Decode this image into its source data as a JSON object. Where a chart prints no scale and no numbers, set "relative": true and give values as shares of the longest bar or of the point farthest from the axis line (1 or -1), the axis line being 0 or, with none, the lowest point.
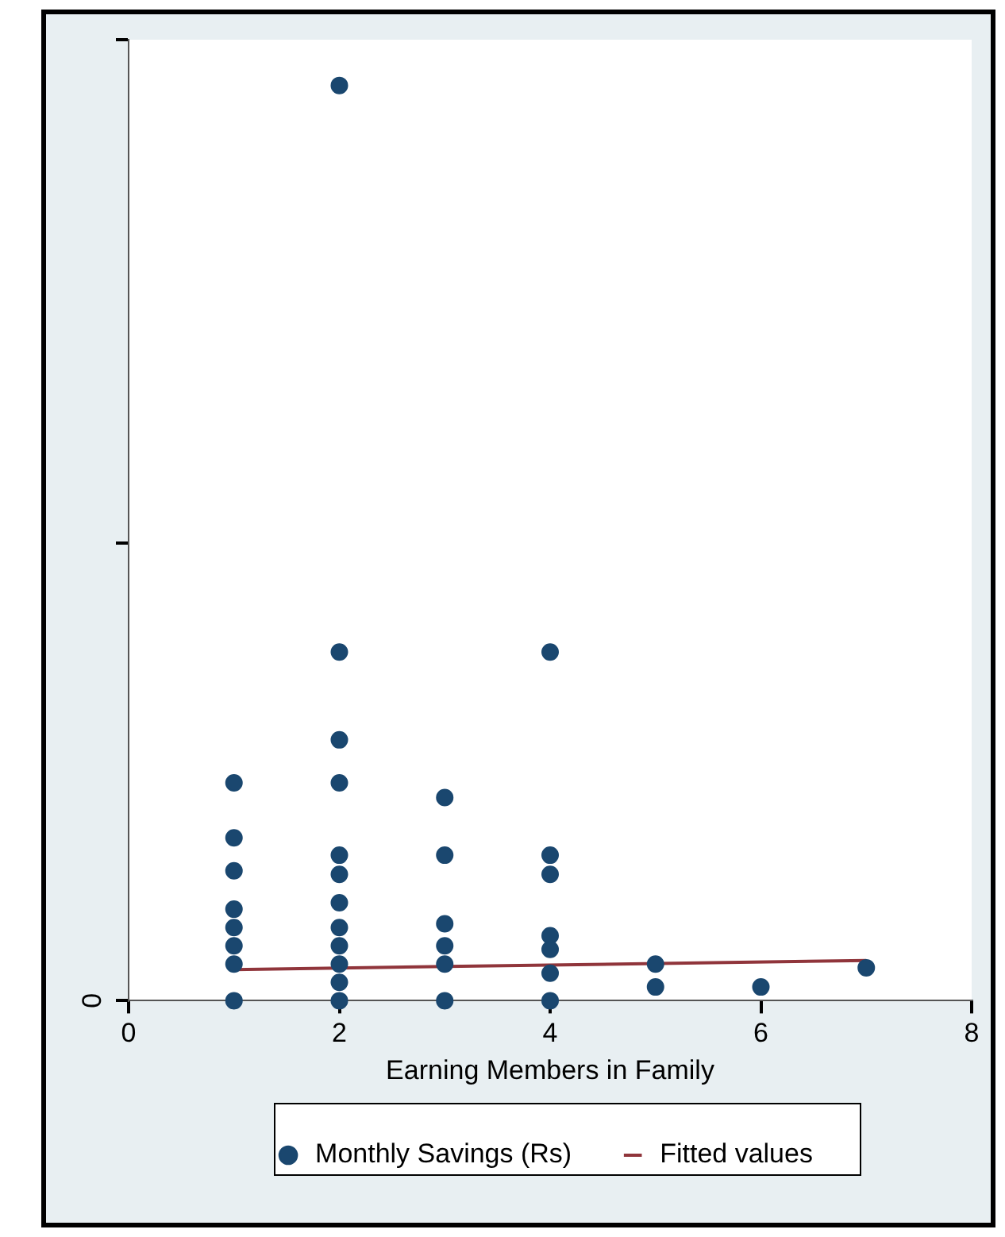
{
  "chart_data": {
    "type": "scatter",
    "xlabel": "Earning Members in Family",
    "relative": true,
    "xlim": [
      0,
      8
    ],
    "xticks": [
      0,
      2,
      4,
      6,
      8
    ],
    "annotations": [
      "0"
    ],
    "legend": "bottom",
    "marker": "circle",
    "series": [
      {
        "name": "Monthly Savings (Rs)",
        "color": "#1a476f",
        "x": [
          1,
          1,
          1,
          1,
          1,
          1,
          1,
          1,
          2,
          2,
          2,
          2,
          2,
          2,
          2,
          2,
          2,
          2,
          2,
          2,
          3,
          3,
          3,
          3,
          3,
          3,
          4,
          4,
          4,
          4,
          4,
          4,
          4,
          5,
          5,
          6,
          7
        ],
        "values": [
          0.238,
          0.178,
          0.142,
          0.1,
          0.08,
          0.06,
          0.04,
          0,
          1,
          0.381,
          0.285,
          0.238,
          0.159,
          0.138,
          0.107,
          0.08,
          0.06,
          0.04,
          0.02,
          0,
          0.222,
          0.159,
          0.084,
          0.06,
          0.04,
          0,
          0.381,
          0.159,
          0.138,
          0.071,
          0.056,
          0.03,
          0,
          0.04,
          0.015,
          0.015,
          0.036
        ]
      },
      {
        "name": "Fitted values",
        "type": "line",
        "color": "#90353b",
        "marker": "none",
        "x": [
          1,
          7
        ],
        "values": [
          0.034,
          0.044
        ]
      }
    ]
  }
}
